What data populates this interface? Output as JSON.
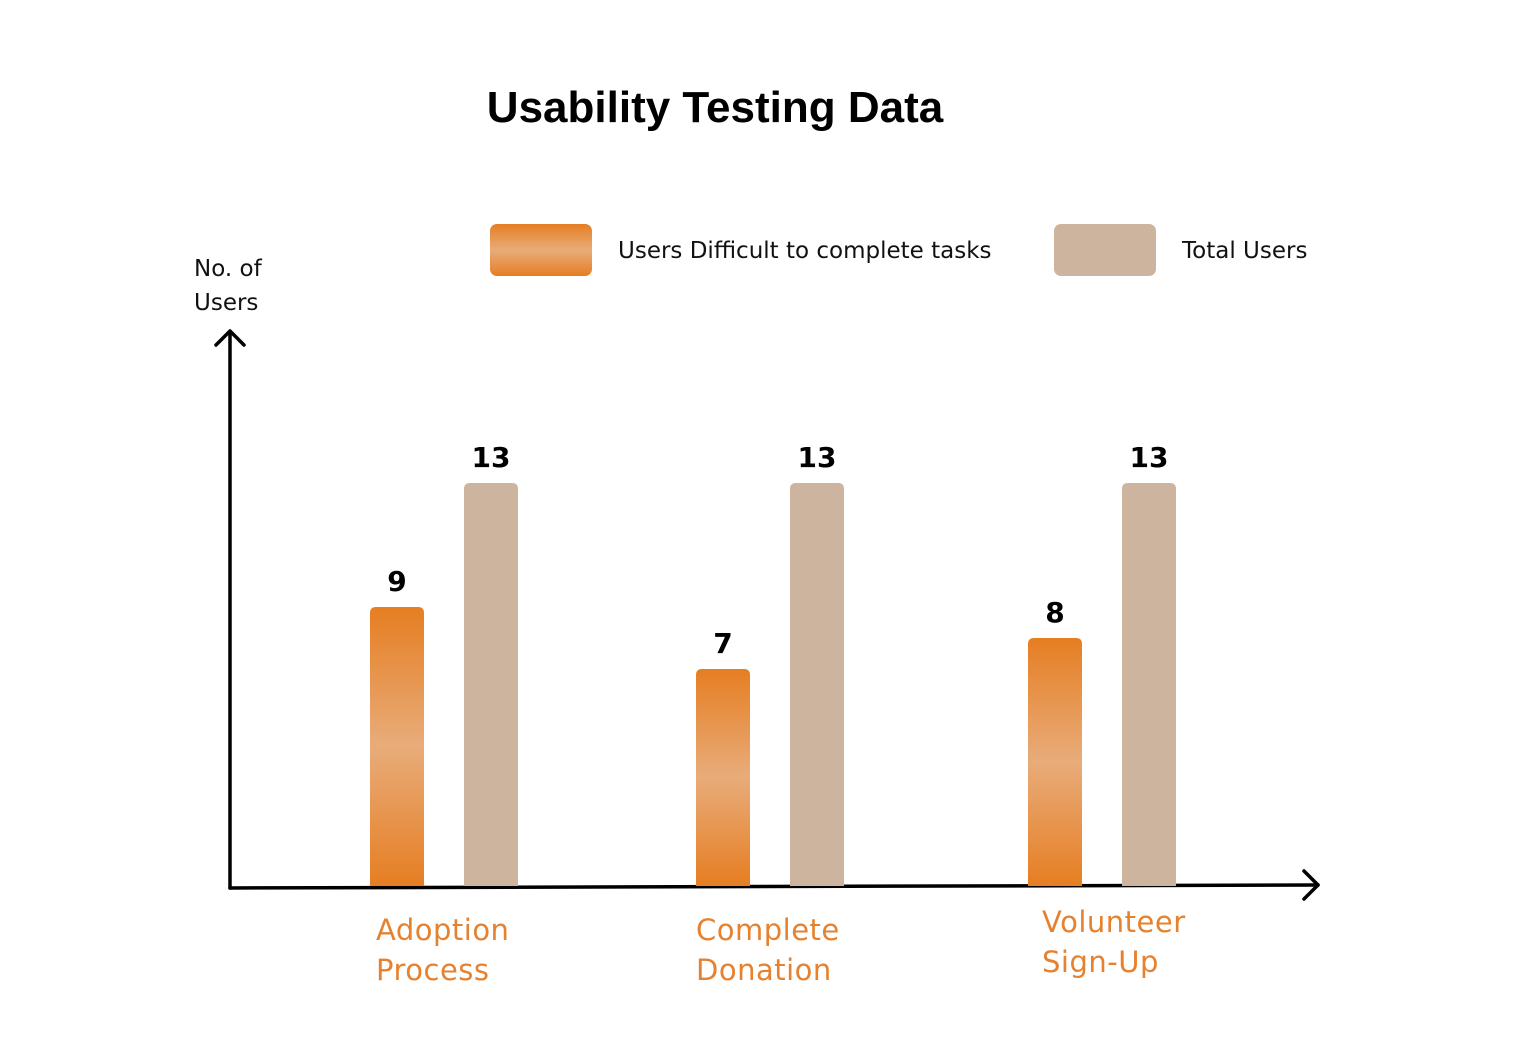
{
  "chart_data": {
    "type": "bar",
    "title": "Usability Testing Data",
    "ylabel": [
      "No. of",
      "Users"
    ],
    "xlabel": "",
    "categories": [
      [
        "Adoption",
        "Process"
      ],
      [
        "Complete",
        "Donation"
      ],
      [
        "Volunteer",
        "Sign-Up"
      ]
    ],
    "series": [
      {
        "name": "Users Difficult to complete tasks",
        "values": [
          9,
          7,
          8
        ],
        "color": "#E8852E"
      },
      {
        "name": "Total Users",
        "values": [
          13,
          13,
          13
        ],
        "color": "#CDB49E"
      }
    ],
    "ylim": [
      0,
      13
    ],
    "legend_position": "top-right",
    "colors": {
      "difficult_gradient": [
        "#E67E22",
        "#E8AC7A",
        "#E67E22"
      ],
      "total": "#CDB49E",
      "category_text": "#E6822F",
      "axis": "#000000"
    }
  }
}
